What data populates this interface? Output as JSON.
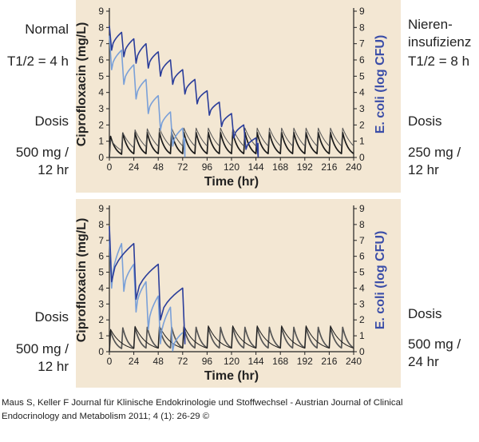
{
  "panels": {
    "top": {
      "left_labels": [
        "Normal",
        "T1/2 = 4 h",
        "Dosis",
        "500 mg /",
        "12 hr"
      ],
      "right_labels": [
        "Nieren-",
        "insufizienz",
        "T1/2 = 8 h",
        "Dosis",
        "250 mg /",
        "12 hr"
      ]
    },
    "bottom": {
      "left_labels": [
        "Dosis",
        "500 mg /",
        "12 hr"
      ],
      "right_labels": [
        "Dosis",
        "500 mg /",
        "24 hr"
      ]
    }
  },
  "caption": [
    "Maus S, Keller F Journal für Klinische Endokrinologie und Stoffwechsel - Austrian Journal of Clinical",
    "Endocrinology and Metabolism 2011; 4 (1): 26-29 ©"
  ],
  "chart_data": [
    {
      "type": "line",
      "title": "",
      "xlabel": "Time (hr)",
      "ylabel": "Ciprofloxacin (mg/L)",
      "y2label": "E. coli (log CFU)",
      "xlim": [
        0,
        240
      ],
      "ylim": [
        0,
        9
      ],
      "y2lim": [
        0,
        9
      ],
      "xticks": [
        "0",
        "24",
        "48",
        "72",
        "96",
        "120",
        "144",
        "168",
        "192",
        "216",
        "240"
      ],
      "yticks": [
        "0",
        "1",
        "2",
        "3",
        "4",
        "5",
        "6",
        "7",
        "8",
        "9"
      ],
      "series": [
        {
          "name": "Ciprofloxacin normal (500 mg / 12 hr, T1/2 = 4 h)",
          "axis": "left",
          "color": "#1a1a1a",
          "dose_interval": 12,
          "peak": 1.3,
          "half_life": 4,
          "x0": 0,
          "x1": 240
        },
        {
          "name": "Ciprofloxacin Niereninsuffizienz (250 mg / 12 hr, T1/2 = 8 h)",
          "axis": "left",
          "color": "#555555",
          "dose_interval": 12,
          "peak": 1.1,
          "half_life": 8,
          "x0": 0,
          "x1": 240
        },
        {
          "name": "E. coli (normal)",
          "axis": "right",
          "color": "#7aa0d8",
          "x": [
            0,
            12,
            24,
            36,
            48,
            60,
            72,
            74
          ],
          "y": [
            7.5,
            6.6,
            5.7,
            4.8,
            3.8,
            2.8,
            1.8,
            1.2
          ],
          "drop": 2.1
        },
        {
          "name": "E. coli (Niereninsuffizienz)",
          "axis": "right",
          "color": "#2a3d9a",
          "x": [
            0,
            12,
            24,
            36,
            48,
            60,
            72,
            84,
            96,
            108,
            120,
            132,
            144,
            146
          ],
          "y": [
            8.1,
            7.7,
            7.3,
            7.0,
            6.5,
            6.0,
            5.4,
            4.8,
            4.1,
            3.4,
            2.7,
            2.0,
            1.2,
            0.9
          ],
          "drop": 1.5
        }
      ]
    },
    {
      "type": "line",
      "title": "",
      "xlabel": "Time (hr)",
      "ylabel": "Ciprofloxacin (mg/L)",
      "y2label": "E. coli (log CFU)",
      "xlim": [
        0,
        240
      ],
      "ylim": [
        0,
        9
      ],
      "y2lim": [
        0,
        9
      ],
      "xticks": [
        "0",
        "24",
        "48",
        "72",
        "96",
        "120",
        "144",
        "168",
        "192",
        "216",
        "240"
      ],
      "yticks": [
        "0",
        "1",
        "2",
        "3",
        "4",
        "5",
        "6",
        "7",
        "8",
        "9"
      ],
      "series": [
        {
          "name": "Ciprofloxacin (500 mg / 12 hr)",
          "axis": "left",
          "color": "#555555",
          "dose_interval": 12,
          "peak": 1.3,
          "half_life": 4,
          "x0": 0,
          "x1": 240
        },
        {
          "name": "Ciprofloxacin (500 mg / 24 hr)",
          "axis": "left",
          "color": "#1a1a1a",
          "dose_interval": 24,
          "peak": 1.4,
          "half_life": 8,
          "x0": 0,
          "x1": 240
        },
        {
          "name": "E. coli (500 mg / 12 hr)",
          "axis": "right",
          "color": "#7aa0d8",
          "x": [
            0,
            12,
            24,
            36,
            48,
            60,
            72
          ],
          "y": [
            7.0,
            6.8,
            5.5,
            4.4,
            3.5,
            2.8,
            1.2
          ],
          "drop": 3.0
        },
        {
          "name": "E. coli (500 mg / 24 hr)",
          "axis": "right",
          "color": "#2a3d9a",
          "x": [
            0,
            24,
            48,
            72,
            74
          ],
          "y": [
            7.9,
            6.8,
            5.5,
            4.0,
            1.5
          ],
          "drop": 3.5
        }
      ]
    }
  ]
}
